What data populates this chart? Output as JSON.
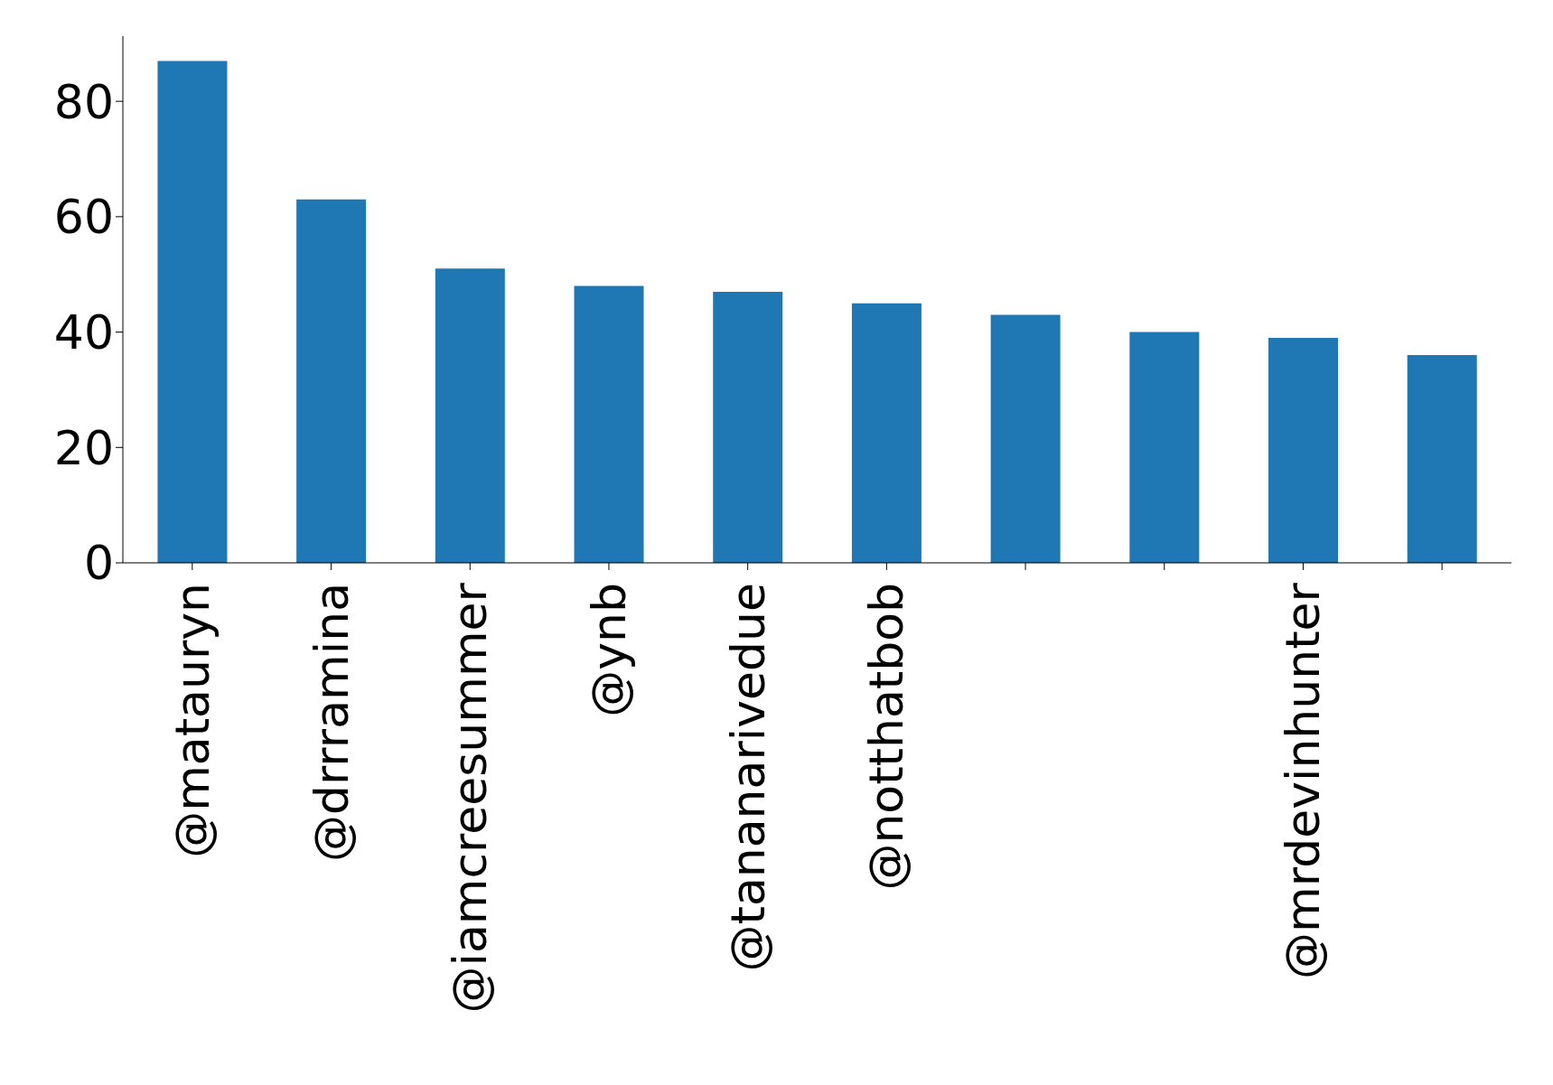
{
  "chart_data": {
    "type": "bar",
    "categories": [
      "@matauryn",
      "@drrramina",
      "@iamcreesummer",
      "@ynb",
      "@tananarivedue",
      "@notthatbob",
      null,
      null,
      "@mrdevinhunter",
      null
    ],
    "values": [
      87,
      63,
      51,
      48,
      47,
      45,
      43,
      40,
      39,
      36
    ],
    "color": "#1f77b4",
    "ylim": [
      0,
      91.3
    ],
    "yticks": [
      0,
      20,
      40,
      60,
      80
    ],
    "grid": false,
    "legend": false
  }
}
